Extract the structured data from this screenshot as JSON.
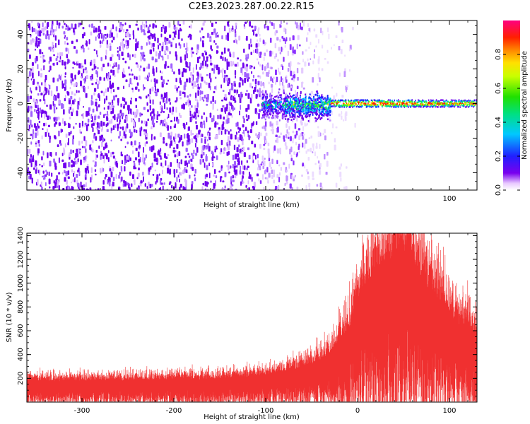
{
  "title": "C2E3.2023.287.00.22.R15",
  "colors": {
    "snr_line": "#f03030",
    "spectrogram_noise": "#7000ee",
    "axis": "#000000"
  },
  "chart_data": [
    {
      "type": "heatmap",
      "xlabel": "Height of straight line (km)",
      "ylabel": "Frequency (Hz)",
      "xlim": [
        -360,
        130
      ],
      "ylim": [
        -50,
        48
      ],
      "xticks": [
        -300,
        -200,
        -100,
        0,
        100
      ],
      "yticks": [
        -40,
        -20,
        0,
        20,
        40
      ],
      "colorbar": {
        "label": "Normalized spectral amplitude",
        "range": [
          0,
          1
        ],
        "ticks": [
          0.0,
          0.2,
          0.4,
          0.6,
          0.8
        ],
        "colormap": "rainbow"
      },
      "features": [
        {
          "region": "noise",
          "x": [
            -360,
            -100
          ],
          "freq": [
            -50,
            48
          ],
          "amplitude": 0.05
        },
        {
          "region": "fading noise",
          "x": [
            -100,
            -30
          ],
          "freq": [
            -50,
            48
          ],
          "amplitude": 0.03
        },
        {
          "region": "meteor head echo onset",
          "x": [
            -105,
            -30
          ],
          "freq": [
            -12,
            8
          ],
          "amplitude": 0.35
        },
        {
          "region": "narrow echo line",
          "x": [
            -30,
            130
          ],
          "freq": [
            -2,
            2
          ],
          "amplitude": 0.9
        }
      ]
    },
    {
      "type": "line",
      "xlabel": "Height of straight line (km)",
      "ylabel": "SNR (10 * v/v)",
      "xlim": [
        -360,
        130
      ],
      "ylim": [
        0,
        1420
      ],
      "xticks": [
        -300,
        -200,
        -100,
        0,
        100
      ],
      "yticks": [
        200,
        400,
        600,
        800,
        1000,
        1200,
        1400
      ],
      "series": [
        {
          "x": [
            -360,
            -300,
            -250,
            -200,
            -150,
            -100,
            -60,
            -30,
            -10,
            0,
            20,
            40,
            55,
            70,
            90,
            110,
            130
          ],
          "values": [
            150,
            150,
            155,
            160,
            165,
            190,
            240,
            330,
            500,
            700,
            930,
            1050,
            1060,
            880,
            700,
            560,
            480
          ]
        }
      ]
    }
  ]
}
